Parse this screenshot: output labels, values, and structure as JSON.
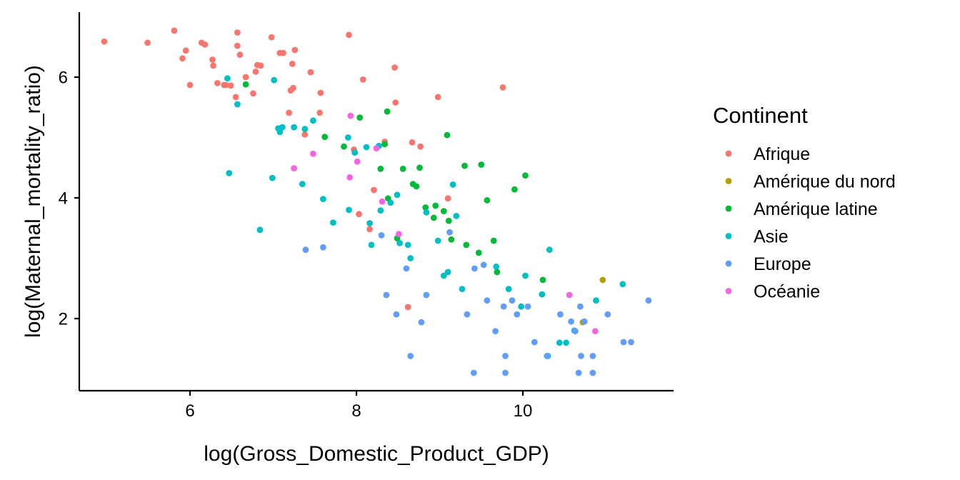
{
  "chart_data": {
    "type": "scatter",
    "xlabel": "log(Gross_Domestic_Product_GDP)",
    "ylabel": "log(Maternal_mortality_ratio)",
    "xlim": [
      4.7,
      11.8
    ],
    "ylim": [
      0.8,
      7.1
    ],
    "x_ticks": [
      6,
      8,
      10
    ],
    "y_ticks": [
      2,
      4,
      6
    ],
    "grid": false,
    "legend": {
      "title": "Continent",
      "position": "right"
    },
    "series": [
      {
        "name": "Afrique",
        "color": "#F8766D",
        "points": [
          [
            4.97,
            6.59
          ],
          [
            5.49,
            6.57
          ],
          [
            5.81,
            6.77
          ],
          [
            5.91,
            6.31
          ],
          [
            5.95,
            6.44
          ],
          [
            6.0,
            5.87
          ],
          [
            6.14,
            6.57
          ],
          [
            6.18,
            6.54
          ],
          [
            6.27,
            6.29
          ],
          [
            6.28,
            6.19
          ],
          [
            6.33,
            5.9
          ],
          [
            6.41,
            5.87
          ],
          [
            6.43,
            5.87
          ],
          [
            6.49,
            5.86
          ],
          [
            6.55,
            5.67
          ],
          [
            6.57,
            6.74
          ],
          [
            6.57,
            6.52
          ],
          [
            6.6,
            6.37
          ],
          [
            6.67,
            6.0
          ],
          [
            6.76,
            5.73
          ],
          [
            6.79,
            6.09
          ],
          [
            6.81,
            6.2
          ],
          [
            6.85,
            6.19
          ],
          [
            6.98,
            6.66
          ],
          [
            7.08,
            6.4
          ],
          [
            7.12,
            6.4
          ],
          [
            7.19,
            5.41
          ],
          [
            7.21,
            5.78
          ],
          [
            7.23,
            6.22
          ],
          [
            7.24,
            5.82
          ],
          [
            7.26,
            6.45
          ],
          [
            7.38,
            5.05
          ],
          [
            7.45,
            6.08
          ],
          [
            7.56,
            5.41
          ],
          [
            7.57,
            5.74
          ],
          [
            7.91,
            6.7
          ],
          [
            7.97,
            4.8
          ],
          [
            8.03,
            3.73
          ],
          [
            8.08,
            5.96
          ],
          [
            8.16,
            3.48
          ],
          [
            8.21,
            4.13
          ],
          [
            8.34,
            4.93
          ],
          [
            8.46,
            6.16
          ],
          [
            8.47,
            5.58
          ],
          [
            8.62,
            2.19
          ],
          [
            8.67,
            4.92
          ],
          [
            8.77,
            4.85
          ],
          [
            8.98,
            5.67
          ],
          [
            9.1,
            3.99
          ],
          [
            9.76,
            5.83
          ]
        ]
      },
      {
        "name": "Amérique du nord",
        "color": "#B79F00",
        "points": [
          [
            10.72,
            1.94
          ],
          [
            10.96,
            2.64
          ]
        ]
      },
      {
        "name": "Amérique latine",
        "color": "#00BA38",
        "points": [
          [
            6.67,
            5.88
          ],
          [
            7.62,
            5.01
          ],
          [
            7.85,
            4.85
          ],
          [
            8.04,
            5.33
          ],
          [
            8.29,
            4.48
          ],
          [
            8.34,
            4.89
          ],
          [
            8.37,
            5.43
          ],
          [
            8.38,
            3.99
          ],
          [
            8.49,
            3.33
          ],
          [
            8.56,
            4.48
          ],
          [
            8.68,
            4.23
          ],
          [
            8.72,
            4.19
          ],
          [
            8.76,
            4.5
          ],
          [
            8.83,
            3.84
          ],
          [
            8.93,
            3.67
          ],
          [
            8.95,
            3.87
          ],
          [
            9.05,
            3.78
          ],
          [
            9.09,
            5.04
          ],
          [
            9.11,
            3.62
          ],
          [
            9.14,
            3.31
          ],
          [
            9.3,
            4.53
          ],
          [
            9.32,
            3.22
          ],
          [
            9.47,
            3.09
          ],
          [
            9.5,
            4.55
          ],
          [
            9.57,
            3.96
          ],
          [
            9.65,
            3.29
          ],
          [
            9.69,
            2.77
          ],
          [
            9.9,
            4.14
          ],
          [
            10.03,
            4.37
          ],
          [
            10.24,
            2.64
          ]
        ]
      },
      {
        "name": "Asie",
        "color": "#00BFC4",
        "points": [
          [
            6.45,
            5.98
          ],
          [
            6.47,
            4.41
          ],
          [
            6.57,
            5.55
          ],
          [
            6.84,
            3.47
          ],
          [
            6.99,
            4.33
          ],
          [
            7.01,
            5.95
          ],
          [
            7.06,
            5.15
          ],
          [
            7.08,
            5.09
          ],
          [
            7.11,
            5.17
          ],
          [
            7.25,
            5.17
          ],
          [
            7.35,
            4.23
          ],
          [
            7.38,
            5.14
          ],
          [
            7.48,
            5.28
          ],
          [
            7.6,
            3.98
          ],
          [
            7.72,
            3.59
          ],
          [
            7.91,
            3.8
          ],
          [
            7.9,
            5.0
          ],
          [
            7.98,
            4.75
          ],
          [
            8.12,
            4.84
          ],
          [
            8.16,
            3.58
          ],
          [
            8.18,
            3.22
          ],
          [
            8.27,
            4.86
          ],
          [
            8.29,
            3.79
          ],
          [
            8.41,
            3.92
          ],
          [
            8.49,
            4.05
          ],
          [
            8.52,
            3.25
          ],
          [
            8.62,
            3.22
          ],
          [
            8.65,
            3.0
          ],
          [
            8.84,
            3.76
          ],
          [
            8.98,
            3.29
          ],
          [
            9.05,
            2.71
          ],
          [
            9.1,
            2.77
          ],
          [
            9.16,
            4.22
          ],
          [
            9.2,
            3.7
          ],
          [
            9.27,
            2.49
          ],
          [
            9.68,
            2.86
          ],
          [
            9.83,
            2.49
          ],
          [
            9.98,
            2.2
          ],
          [
            10.03,
            2.71
          ],
          [
            10.23,
            2.4
          ],
          [
            10.3,
            1.38
          ],
          [
            10.32,
            3.14
          ],
          [
            10.44,
            1.6
          ],
          [
            10.52,
            1.6
          ],
          [
            10.62,
            1.8
          ],
          [
            10.88,
            2.3
          ],
          [
            11.2,
            2.57
          ]
        ]
      },
      {
        "name": "Europe",
        "color": "#619CFF",
        "points": [
          [
            7.39,
            3.14
          ],
          [
            7.6,
            3.18
          ],
          [
            8.3,
            3.38
          ],
          [
            8.36,
            2.39
          ],
          [
            8.48,
            2.07
          ],
          [
            8.6,
            2.83
          ],
          [
            8.65,
            1.38
          ],
          [
            8.78,
            1.94
          ],
          [
            8.84,
            2.39
          ],
          [
            9.12,
            3.43
          ],
          [
            9.33,
            2.07
          ],
          [
            9.41,
            1.1
          ],
          [
            9.42,
            2.83
          ],
          [
            9.53,
            2.89
          ],
          [
            9.57,
            2.3
          ],
          [
            9.67,
            1.79
          ],
          [
            9.77,
            2.2
          ],
          [
            9.79,
            1.38
          ],
          [
            9.79,
            1.1
          ],
          [
            9.87,
            2.3
          ],
          [
            9.93,
            2.07
          ],
          [
            10.06,
            2.2
          ],
          [
            10.14,
            1.61
          ],
          [
            10.29,
            1.38
          ],
          [
            10.45,
            2.07
          ],
          [
            10.58,
            1.95
          ],
          [
            10.63,
            1.79
          ],
          [
            10.67,
            1.1
          ],
          [
            10.69,
            2.2
          ],
          [
            10.7,
            1.38
          ],
          [
            10.74,
            1.95
          ],
          [
            10.84,
            1.38
          ],
          [
            10.84,
            1.1
          ],
          [
            11.02,
            2.07
          ],
          [
            11.21,
            1.61
          ],
          [
            11.3,
            1.61
          ],
          [
            11.51,
            2.3
          ]
        ]
      },
      {
        "name": "Océanie",
        "color": "#F564E3",
        "points": [
          [
            7.25,
            4.49
          ],
          [
            7.48,
            4.73
          ],
          [
            7.92,
            4.34
          ],
          [
            7.93,
            5.36
          ],
          [
            8.01,
            4.6
          ],
          [
            8.24,
            4.82
          ],
          [
            8.31,
            3.94
          ],
          [
            8.51,
            3.4
          ],
          [
            10.56,
            2.39
          ],
          [
            10.87,
            1.79
          ]
        ]
      }
    ]
  }
}
